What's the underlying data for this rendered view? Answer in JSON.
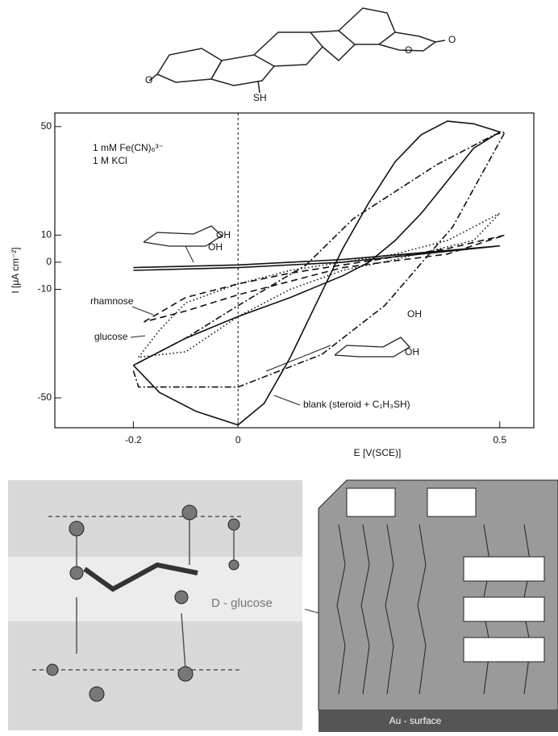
{
  "chart_data": {
    "type": "line",
    "x_label": "E [V(SCE)]",
    "y_label": "I [μA cm⁻²]",
    "annotations": [
      "1 mM Fe(CN)₆³⁻",
      "1 M KCl"
    ],
    "xlim": [
      -0.35,
      0.565
    ],
    "ylim": [
      -61,
      55
    ],
    "xticks": [
      -0.2,
      0,
      0.5
    ],
    "yticks": [
      50,
      10,
      0,
      -10,
      -50
    ],
    "zero_line": true,
    "series": [
      {
        "name": "blank (steroid + C₁H₃SH)",
        "color": "#111111",
        "dash": "solid",
        "x": [
          -0.2,
          -0.15,
          -0.08,
          0,
          0.05,
          0.1,
          0.15,
          0.2,
          0.25,
          0.3,
          0.35,
          0.4,
          0.45,
          0.5,
          0.45,
          0.4,
          0.35,
          0.3,
          0.25,
          0.2,
          0.1,
          0,
          -0.1,
          -0.2
        ],
        "values": [
          -38,
          -48,
          -55,
          -60,
          -52,
          -35,
          -15,
          5,
          22,
          37,
          47,
          52,
          51,
          48,
          42,
          30,
          18,
          8,
          0,
          -5,
          -13,
          -20,
          -28,
          -38
        ]
      },
      {
        "color": "#111111",
        "dash": "dashdot",
        "x": [
          -0.2,
          -0.19,
          0,
          0.16,
          0.28,
          0.41,
          0.51,
          0.49,
          0.38,
          0.22,
          0.13,
          0,
          -0.1,
          -0.2
        ],
        "values": [
          -40,
          -46,
          -46,
          -34,
          -16,
          13,
          48,
          47,
          36,
          16,
          -1,
          -16,
          -28,
          -38
        ]
      },
      {
        "name": "glucose",
        "color": "#111111",
        "dash": "dotted",
        "x": [
          -0.19,
          -0.15,
          -0.1,
          0,
          0.1,
          0.2,
          0.3,
          0.4,
          0.5,
          0.45,
          0.3,
          0.2,
          0.1,
          0,
          -0.1,
          -0.19
        ],
        "values": [
          -35,
          -25,
          -15,
          -8,
          -3,
          0,
          3,
          8,
          18,
          8,
          1,
          -3,
          -10,
          -20,
          -33,
          -35
        ]
      },
      {
        "name": "rhamnose",
        "color": "#111111",
        "dash": "dashed",
        "x": [
          -0.18,
          -0.1,
          0,
          0.1,
          0.2,
          0.3,
          0.4,
          0.51,
          0.4,
          0.2,
          0,
          -0.1,
          -0.18
        ],
        "values": [
          -22,
          -13,
          -8,
          -4,
          -1,
          2,
          5,
          10,
          3,
          -2,
          -12,
          -18,
          -22
        ]
      },
      {
        "color": "#111111",
        "dash": "solid",
        "x": [
          -0.2,
          0,
          0.2,
          0.5,
          0.2,
          0,
          -0.2
        ],
        "values": [
          -2,
          -1,
          1,
          6,
          0,
          -2,
          -3
        ]
      }
    ]
  },
  "figure": {
    "steroid_labels": [
      "O",
      "SH",
      "O",
      "O"
    ],
    "inset_labels": [
      "OH",
      "OH",
      "OH",
      "OH"
    ],
    "model_label": "D - glucose",
    "surface_label": "Au - surface"
  }
}
